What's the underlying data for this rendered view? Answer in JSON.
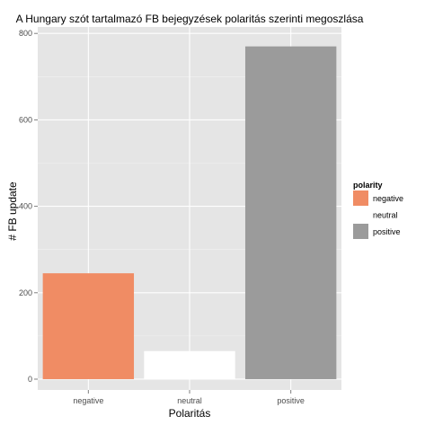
{
  "chart_data": {
    "type": "bar",
    "title": "A Hungary szót tartalmazó FB bejegyzések polaritás szerinti megoszlása",
    "xlabel": "Polaritás",
    "ylabel": "# FB update",
    "categories": [
      "negative",
      "neutral",
      "positive"
    ],
    "values": [
      245,
      65,
      770
    ],
    "colors": [
      "#f08c64",
      "#ffffff",
      "#9b9b9b"
    ],
    "ylim": [
      -25,
      815
    ],
    "yticks": [
      0,
      200,
      400,
      600,
      800
    ],
    "grid": true,
    "panel_background": "#e5e5e5",
    "legend": {
      "title": "polarity",
      "position": "right",
      "entries": [
        "negative",
        "neutral",
        "positive"
      ]
    }
  }
}
